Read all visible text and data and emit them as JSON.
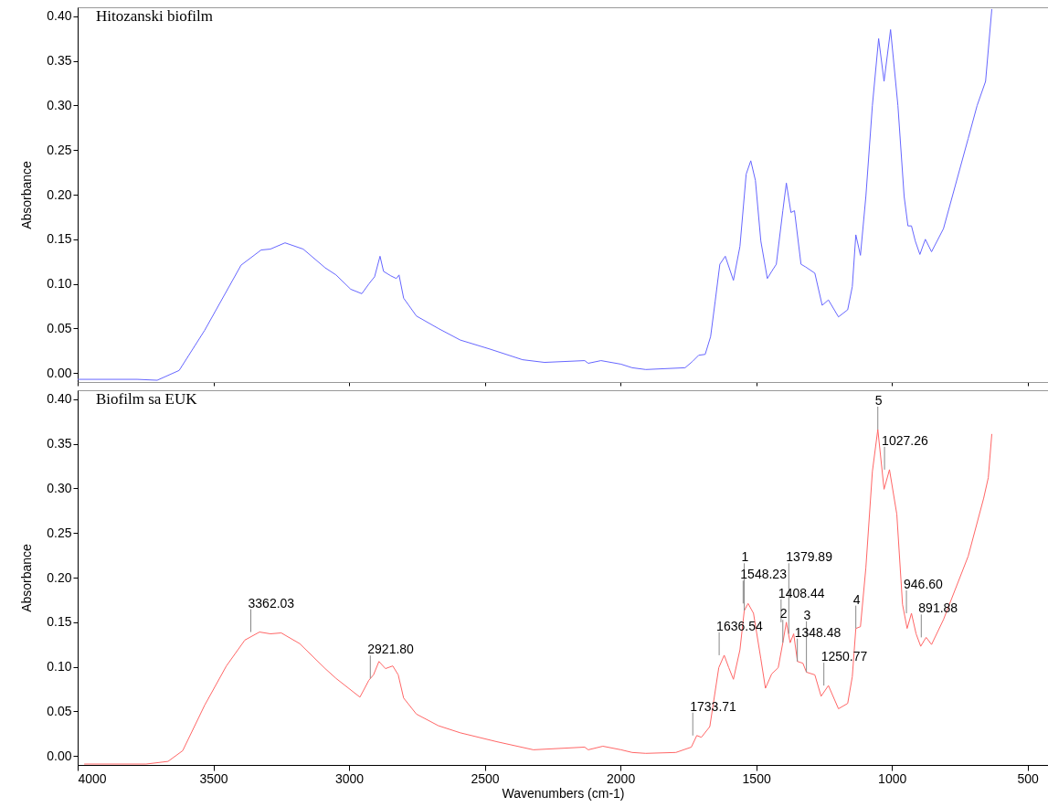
{
  "chart_data": [
    {
      "type": "line",
      "title": "Hitozanski biofilm",
      "ylabel": "Absorbance",
      "tick_labels": "y",
      "xlim": [
        4000,
        425
      ],
      "xticks": [
        4000,
        3500,
        3000,
        2500,
        2000,
        1500,
        1000,
        500
      ],
      "ylim": [
        -0.01,
        0.41
      ],
      "yticks": [
        {
          "value": 0,
          "label": "0.00"
        },
        {
          "value": 0.05,
          "label": "0.05"
        },
        {
          "value": 0.1,
          "label": "0.10"
        },
        {
          "value": 0.15,
          "label": "0.15"
        },
        {
          "value": 0.2,
          "label": "0.20"
        },
        {
          "value": 0.25,
          "label": "0.25"
        },
        {
          "value": 0.3,
          "label": "0.30"
        },
        {
          "value": 0.35,
          "label": "0.35"
        },
        {
          "value": 0.4,
          "label": "0.40"
        }
      ],
      "series": [
        {
          "color": "#6666ff",
          "x": [
            4000,
            3781,
            3707,
            3626,
            3532,
            3398,
            3324,
            3290,
            3236,
            3169,
            3088,
            3048,
            2994,
            2953,
            2927,
            2906,
            2886,
            2873,
            2846,
            2826,
            2816,
            2799,
            2752,
            2671,
            2590,
            2482,
            2361,
            2280,
            2132,
            2119,
            2072,
            1998,
            1957,
            1907,
            1762,
            1735,
            1712,
            1688,
            1668,
            1651,
            1634,
            1614,
            1584,
            1560,
            1537,
            1520,
            1503,
            1483,
            1459,
            1443,
            1426,
            1402,
            1389,
            1372,
            1359,
            1335,
            1318,
            1284,
            1257,
            1234,
            1197,
            1163,
            1146,
            1133,
            1116,
            1096,
            1072,
            1049,
            1029,
            1005,
            978,
            955,
            941,
            928,
            914,
            897,
            877,
            854,
            810,
            719,
            686,
            655,
            632
          ],
          "values": [
            -0.007,
            -0.007,
            -0.008,
            0.003,
            0.048,
            0.121,
            0.138,
            0.139,
            0.146,
            0.139,
            0.118,
            0.11,
            0.094,
            0.089,
            0.1,
            0.108,
            0.131,
            0.114,
            0.109,
            0.106,
            0.11,
            0.084,
            0.064,
            0.05,
            0.037,
            0.027,
            0.015,
            0.012,
            0.014,
            0.011,
            0.014,
            0.01,
            0.006,
            0.004,
            0.006,
            0.013,
            0.02,
            0.021,
            0.041,
            0.081,
            0.122,
            0.131,
            0.104,
            0.142,
            0.223,
            0.238,
            0.216,
            0.148,
            0.106,
            0.114,
            0.122,
            0.182,
            0.213,
            0.18,
            0.182,
            0.122,
            0.119,
            0.112,
            0.076,
            0.082,
            0.063,
            0.071,
            0.097,
            0.155,
            0.132,
            0.198,
            0.3,
            0.375,
            0.327,
            0.385,
            0.3,
            0.198,
            0.165,
            0.165,
            0.148,
            0.133,
            0.15,
            0.136,
            0.162,
            0.263,
            0.3,
            0.327,
            0.408
          ]
        }
      ]
    },
    {
      "type": "line",
      "title": "Biofilm sa EUK",
      "xlabel": "Wavenumbers (cm-1)",
      "ylabel": "Absorbance",
      "xlim": [
        4000,
        425
      ],
      "xticks": [
        4000,
        3500,
        3000,
        2500,
        2000,
        1500,
        1000,
        500
      ],
      "ylim": [
        -0.01,
        0.41
      ],
      "yticks": [
        {
          "value": 0,
          "label": "0.00"
        },
        {
          "value": 0.05,
          "label": "0.05"
        },
        {
          "value": 0.1,
          "label": "0.10"
        },
        {
          "value": 0.15,
          "label": "0.15"
        },
        {
          "value": 0.2,
          "label": "0.20"
        },
        {
          "value": 0.25,
          "label": "0.25"
        },
        {
          "value": 0.3,
          "label": "0.30"
        },
        {
          "value": 0.35,
          "label": "0.35"
        },
        {
          "value": 0.4,
          "label": "0.40"
        }
      ],
      "series": [
        {
          "color": "#ff6666",
          "x": [
            3976,
            3748,
            3667,
            3613,
            3532,
            3452,
            3384,
            3330,
            3290,
            3250,
            3182,
            3088,
            3048,
            2960,
            2927,
            2910,
            2890,
            2866,
            2839,
            2819,
            2799,
            2752,
            2671,
            2590,
            2455,
            2321,
            2132,
            2119,
            2065,
            1998,
            1957,
            1907,
            1796,
            1739,
            1719,
            1702,
            1671,
            1638,
            1618,
            1601,
            1584,
            1560,
            1544,
            1530,
            1510,
            1483,
            1466,
            1443,
            1419,
            1402,
            1389,
            1375,
            1362,
            1348,
            1328,
            1315,
            1284,
            1261,
            1234,
            1197,
            1163,
            1146,
            1133,
            1116,
            1096,
            1072,
            1052,
            1029,
            1009,
            982,
            961,
            944,
            928,
            911,
            894,
            874,
            854,
            810,
            719,
            662,
            645,
            632
          ],
          "values": [
            -0.009,
            -0.009,
            -0.006,
            0.006,
            0.057,
            0.101,
            0.13,
            0.139,
            0.137,
            0.138,
            0.126,
            0.098,
            0.087,
            0.066,
            0.085,
            0.091,
            0.106,
            0.098,
            0.101,
            0.091,
            0.065,
            0.047,
            0.034,
            0.026,
            0.016,
            0.007,
            0.01,
            0.007,
            0.011,
            0.007,
            0.004,
            0.003,
            0.004,
            0.01,
            0.023,
            0.021,
            0.033,
            0.099,
            0.113,
            0.099,
            0.086,
            0.119,
            0.163,
            0.171,
            0.16,
            0.109,
            0.076,
            0.092,
            0.099,
            0.127,
            0.15,
            0.127,
            0.137,
            0.106,
            0.104,
            0.094,
            0.091,
            0.067,
            0.079,
            0.053,
            0.059,
            0.089,
            0.143,
            0.145,
            0.211,
            0.319,
            0.366,
            0.299,
            0.321,
            0.271,
            0.17,
            0.143,
            0.16,
            0.137,
            0.123,
            0.133,
            0.125,
            0.153,
            0.224,
            0.289,
            0.312,
            0.361
          ]
        }
      ],
      "annotations": [
        {
          "text": "3362.03",
          "x": 3362.03,
          "y": 0.139
        },
        {
          "text": "2921.80",
          "x": 2921.8,
          "y": 0.087
        },
        {
          "text": "1733.71",
          "x": 1733.71,
          "y": 0.023
        },
        {
          "text": "1636.54",
          "x": 1636.54,
          "y": 0.113
        },
        {
          "text": "1548.23",
          "x": 1548.23,
          "y": 0.171
        },
        {
          "text": "1408.44",
          "x": 1408.44,
          "y": 0.15
        },
        {
          "text": "1379.89",
          "x": 1379.89,
          "y": 0.137
        },
        {
          "text": "1348.48",
          "x": 1348.48,
          "y": 0.106
        },
        {
          "text": "1250.77",
          "x": 1250.77,
          "y": 0.079
        },
        {
          "text": "1027.26",
          "x": 1027.26,
          "y": 0.321
        },
        {
          "text": "946.60",
          "x": 946.6,
          "y": 0.16
        },
        {
          "text": "891.88",
          "x": 891.88,
          "y": 0.133
        },
        {
          "text": "1",
          "x": 1544,
          "y": 0.163
        },
        {
          "text": "2",
          "x": 1402,
          "y": 0.127
        },
        {
          "text": "3",
          "x": 1315,
          "y": 0.094
        },
        {
          "text": "4",
          "x": 1133,
          "y": 0.143
        },
        {
          "text": "5",
          "x": 1052,
          "y": 0.366
        }
      ]
    }
  ]
}
